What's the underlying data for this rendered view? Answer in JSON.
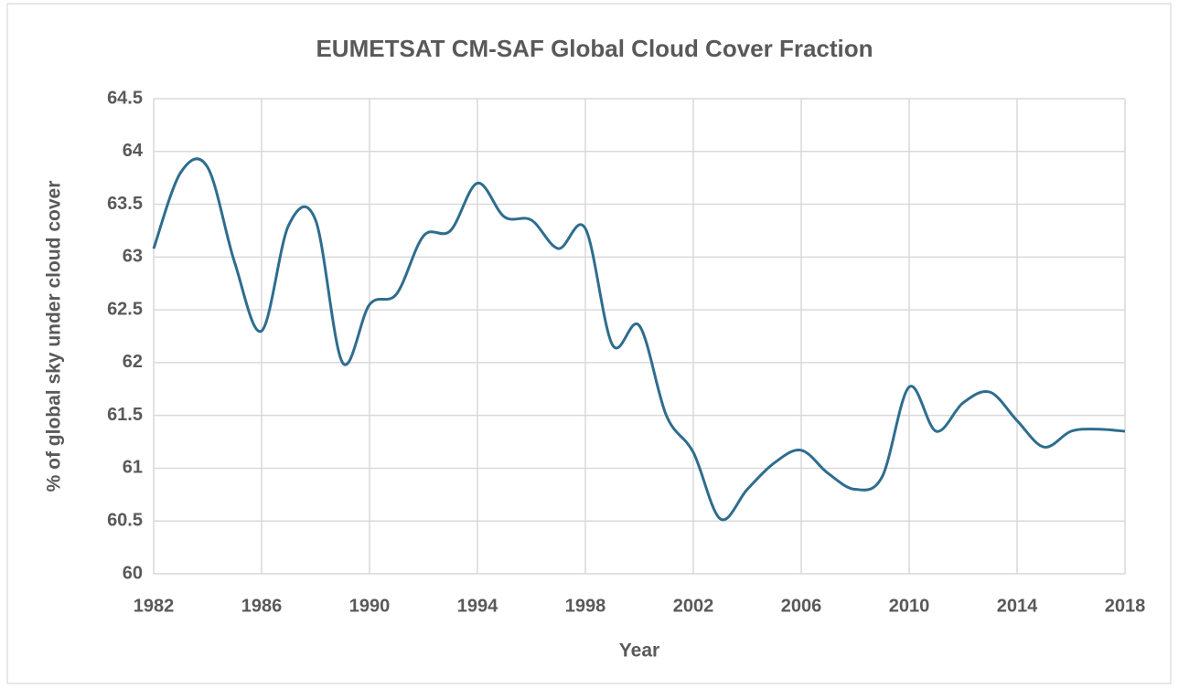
{
  "chart_data": {
    "type": "line",
    "title": "EUMETSAT CM-SAF Global Cloud Cover Fraction",
    "x_label": "Year",
    "y_label": "% of global sky under cloud cover",
    "x": [
      1982,
      1983,
      1984,
      1985,
      1986,
      1987,
      1988,
      1989,
      1990,
      1991,
      1992,
      1993,
      1994,
      1995,
      1996,
      1997,
      1998,
      1999,
      2000,
      2001,
      2002,
      2003,
      2004,
      2005,
      2006,
      2007,
      2008,
      2009,
      2010,
      2011,
      2012,
      2013,
      2014,
      2015,
      2016,
      2017,
      2018
    ],
    "series": [
      {
        "name": "Global Cloud Cover Fraction",
        "color": "#2e6d8e",
        "values": [
          63.08,
          63.8,
          63.85,
          62.95,
          62.3,
          63.3,
          63.35,
          62.0,
          62.55,
          62.65,
          63.2,
          63.25,
          63.7,
          63.38,
          63.35,
          63.08,
          63.27,
          62.17,
          62.35,
          61.5,
          61.15,
          60.52,
          60.8,
          61.05,
          61.17,
          60.95,
          60.8,
          60.92,
          61.77,
          61.35,
          61.62,
          61.72,
          61.45,
          61.2,
          61.35,
          61.37,
          61.35
        ]
      }
    ],
    "xlim": [
      1982,
      2018
    ],
    "xticks": [
      1982,
      1986,
      1990,
      1994,
      1998,
      2002,
      2006,
      2010,
      2014,
      2018
    ],
    "ylim": [
      60,
      64.5
    ],
    "yticks": [
      60,
      60.5,
      61,
      61.5,
      62,
      62.5,
      63,
      63.5,
      64,
      64.5
    ],
    "grid": true,
    "smooth": true
  }
}
